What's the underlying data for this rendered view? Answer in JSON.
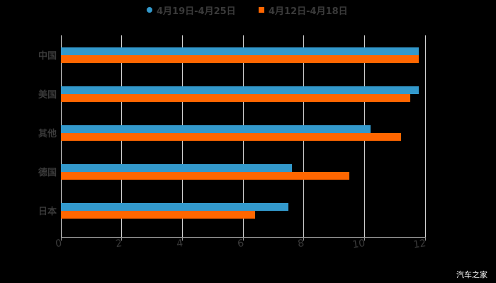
{
  "chart_data": {
    "type": "bar",
    "orientation": "horizontal",
    "title": "",
    "categories": [
      "中国",
      "美国",
      "其他",
      "德国",
      "日本"
    ],
    "series": [
      {
        "name": "4月19日-4月25日",
        "color": "#3399cc",
        "values": [
          11.8,
          11.8,
          10.2,
          7.6,
          7.5
        ]
      },
      {
        "name": "4月12日-4月18日",
        "color": "#ff6600",
        "values": [
          11.8,
          11.5,
          11.2,
          9.5,
          6.4
        ]
      }
    ],
    "xlabel": "",
    "ylabel": "",
    "xlim": [
      0,
      12
    ],
    "xticks": [
      "0",
      "2",
      "4",
      "6",
      "8",
      "10",
      "12"
    ],
    "grid": true,
    "legend_position": "top"
  },
  "legend": {
    "series1": "4月19日-4月25日",
    "series2": "4月12日-4月18日"
  },
  "watermark": "汽车之家"
}
